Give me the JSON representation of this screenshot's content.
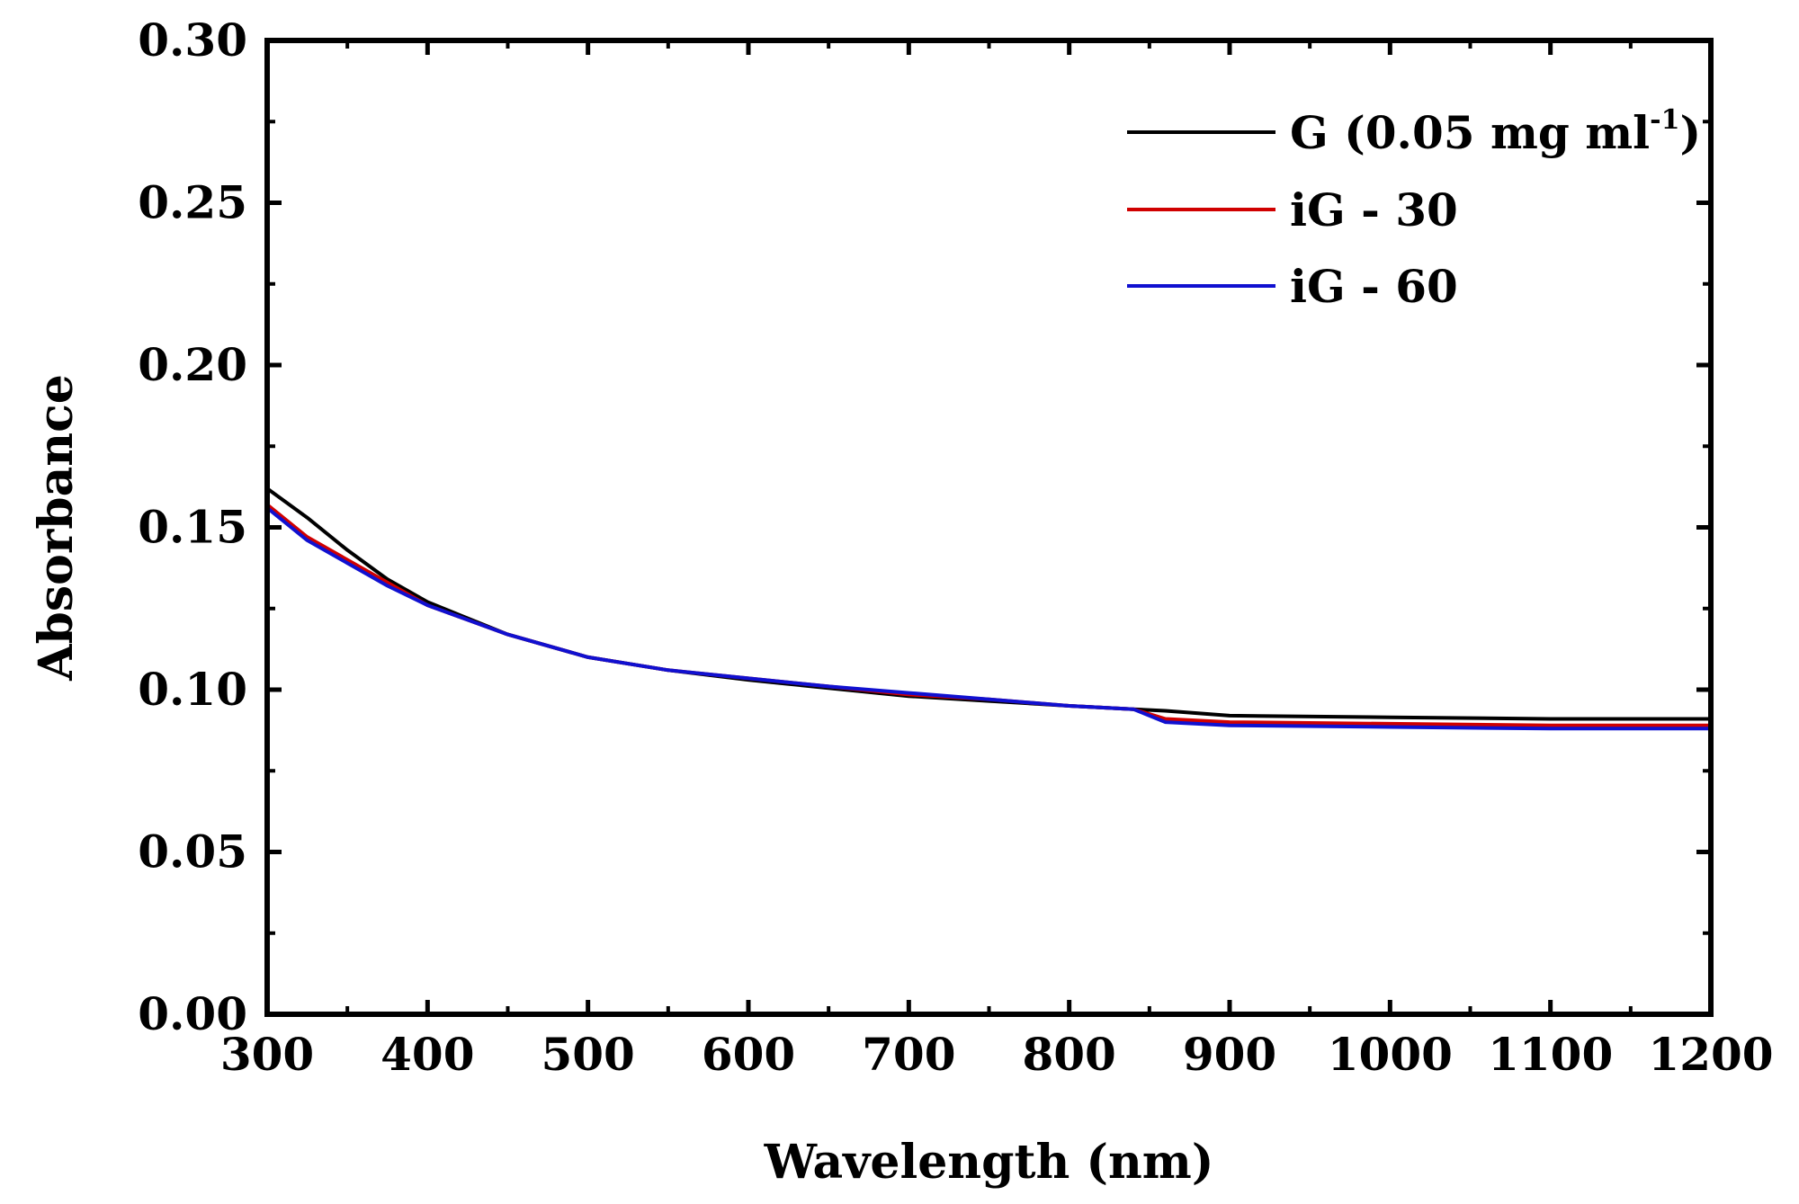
{
  "chart_data": {
    "type": "line",
    "title": "",
    "xlabel": "Wavelength (nm)",
    "ylabel": "Absorbance",
    "xlim": [
      300,
      1200
    ],
    "ylim": [
      0.0,
      0.3
    ],
    "x_ticks": [
      300,
      400,
      500,
      600,
      700,
      800,
      900,
      1000,
      1100,
      1200
    ],
    "x_tick_labels": [
      "300",
      "400",
      "500",
      "600",
      "700",
      "800",
      "900",
      "1000",
      "1100",
      "1200"
    ],
    "y_ticks": [
      0.0,
      0.05,
      0.1,
      0.15,
      0.2,
      0.25,
      0.3
    ],
    "y_tick_labels": [
      "0.00",
      "0.05",
      "0.10",
      "0.15",
      "0.20",
      "0.25",
      "0.30"
    ],
    "grid": false,
    "legend_position": "top-right",
    "x": [
      300,
      325,
      350,
      375,
      400,
      450,
      500,
      550,
      600,
      650,
      700,
      750,
      800,
      840,
      860,
      900,
      1000,
      1100,
      1200
    ],
    "series": [
      {
        "name": "G (0.05 mg ml-1)",
        "legend_main": "G (0.05 mg ml",
        "legend_sup": "-1",
        "legend_close": ")",
        "color": "#000000",
        "values": [
          0.162,
          0.153,
          0.143,
          0.134,
          0.127,
          0.117,
          0.11,
          0.106,
          0.103,
          0.1005,
          0.098,
          0.0965,
          0.095,
          0.094,
          0.0935,
          0.092,
          0.0915,
          0.091,
          0.091
        ]
      },
      {
        "name": "iG - 30",
        "legend_main": "iG - 30",
        "color": "#d00000",
        "values": [
          0.157,
          0.147,
          0.14,
          0.133,
          0.126,
          0.117,
          0.11,
          0.106,
          0.1035,
          0.101,
          0.0985,
          0.097,
          0.095,
          0.094,
          0.091,
          0.09,
          0.0895,
          0.089,
          0.089
        ]
      },
      {
        "name": "iG - 60",
        "legend_main": "iG - 60",
        "color": "#1010d0",
        "values": [
          0.156,
          0.146,
          0.139,
          0.132,
          0.126,
          0.117,
          0.11,
          0.106,
          0.1035,
          0.101,
          0.099,
          0.097,
          0.095,
          0.094,
          0.09,
          0.089,
          0.0885,
          0.088,
          0.088
        ]
      }
    ]
  }
}
